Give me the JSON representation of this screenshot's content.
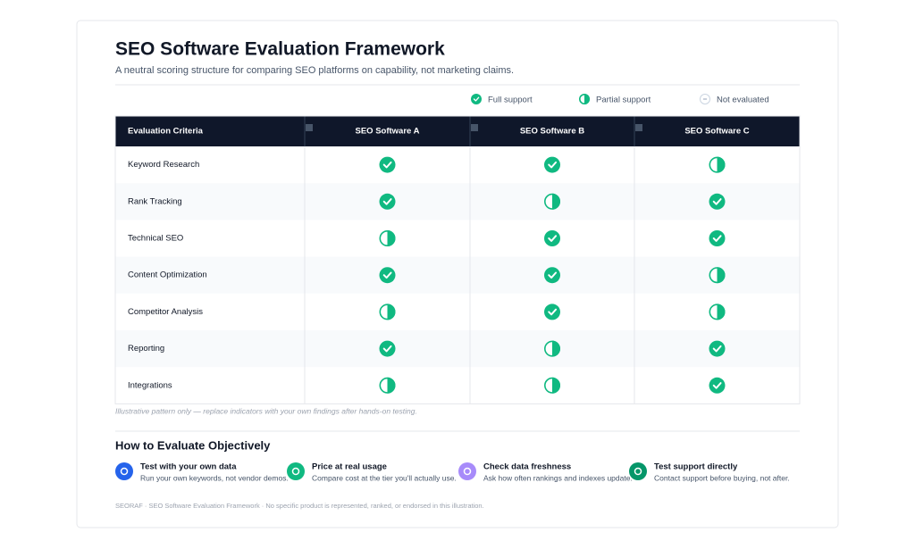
{
  "header": {
    "title": "SEO Software Evaluation Framework",
    "subtitle": "A neutral scoring structure for comparing SEO platforms on capability, not marketing claims."
  },
  "legend": [
    {
      "key": "full",
      "label": "Full support"
    },
    {
      "key": "partial",
      "label": "Partial support"
    },
    {
      "key": "none",
      "label": "Not evaluated"
    }
  ],
  "table": {
    "columns": [
      "Evaluation Criteria",
      "SEO Software A",
      "SEO Software B",
      "SEO Software C"
    ],
    "rows": [
      {
        "criterion": "Keyword Research",
        "ratings": [
          "full",
          "full",
          "partial"
        ]
      },
      {
        "criterion": "Rank Tracking",
        "ratings": [
          "full",
          "partial",
          "full"
        ]
      },
      {
        "criterion": "Technical SEO",
        "ratings": [
          "partial",
          "full",
          "full"
        ]
      },
      {
        "criterion": "Content Optimization",
        "ratings": [
          "full",
          "full",
          "partial"
        ]
      },
      {
        "criterion": "Competitor Analysis",
        "ratings": [
          "partial",
          "full",
          "partial"
        ]
      },
      {
        "criterion": "Reporting",
        "ratings": [
          "full",
          "partial",
          "full"
        ]
      },
      {
        "criterion": "Integrations",
        "ratings": [
          "partial",
          "partial",
          "full"
        ]
      }
    ],
    "note": "Illustrative pattern only — replace indicators with your own findings after hands-on testing."
  },
  "tips": {
    "heading": "How to Evaluate Objectively",
    "items": [
      {
        "title": "Test with your own data",
        "text": "Run your own keywords, not vendor demos.",
        "color": "#2563eb"
      },
      {
        "title": "Price at real usage",
        "text": "Compare cost at the tier you'll actually use.",
        "color": "#10b981"
      },
      {
        "title": "Check data freshness",
        "text": "Ask how often rankings and indexes update.",
        "color": "#a78bfa"
      },
      {
        "title": "Test support directly",
        "text": "Contact support before buying, not after.",
        "color": "#059669"
      }
    ]
  },
  "footer": "SEORAF · SEO Software Evaluation Framework · No specific product is represented, ranked, or endorsed in this illustration."
}
